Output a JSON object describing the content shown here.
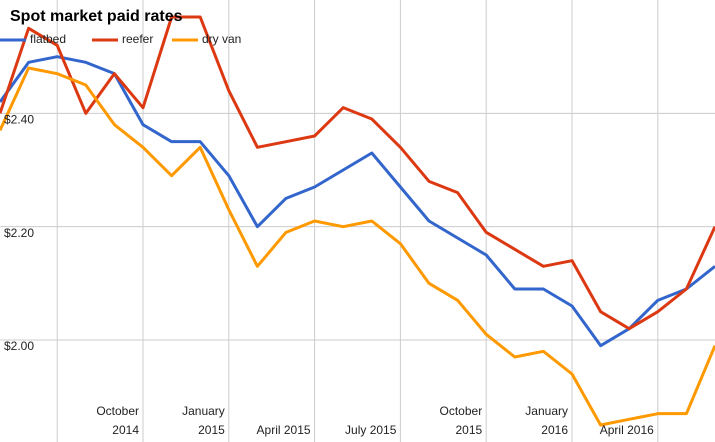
{
  "chart_data": {
    "type": "line",
    "title": "Spot market paid rates",
    "categories": [
      null,
      null,
      null,
      null,
      null,
      "October 2014",
      null,
      null,
      "January 2015",
      null,
      null,
      "April 2015",
      null,
      null,
      "July 2015",
      null,
      null,
      "October 2015",
      null,
      null,
      "January 2016",
      null,
      null,
      "April 2016",
      null,
      null
    ],
    "series": [
      {
        "name": "flatbed",
        "color": "#3366cc",
        "values": [
          2.42,
          2.49,
          2.5,
          2.49,
          2.47,
          2.38,
          2.35,
          2.35,
          2.29,
          2.2,
          2.25,
          2.27,
          2.3,
          2.33,
          2.27,
          2.21,
          2.18,
          2.15,
          2.09,
          2.09,
          2.06,
          1.99,
          2.02,
          2.07,
          2.09,
          2.13
        ]
      },
      {
        "name": "reefer",
        "color": "#dc3912",
        "values": [
          2.4,
          2.55,
          2.52,
          2.4,
          2.47,
          2.41,
          2.57,
          2.57,
          2.44,
          2.34,
          2.35,
          2.36,
          2.41,
          2.39,
          2.34,
          2.28,
          2.26,
          2.19,
          2.16,
          2.13,
          2.14,
          2.05,
          2.02,
          2.05,
          2.09,
          2.2
        ]
      },
      {
        "name": "dry van",
        "color": "#ff9900",
        "values": [
          2.37,
          2.48,
          2.47,
          2.45,
          2.38,
          2.34,
          2.29,
          2.34,
          2.23,
          2.13,
          2.19,
          2.21,
          2.2,
          2.21,
          2.17,
          2.1,
          2.07,
          2.01,
          1.97,
          1.98,
          1.94,
          1.85,
          1.86,
          1.87,
          1.87,
          1.99
        ]
      }
    ],
    "ylim": [
      1.82,
      2.6
    ],
    "yticks": [
      {
        "value": 2.0,
        "label": "$2.00"
      },
      {
        "value": 2.2,
        "label": "$2.20"
      },
      {
        "value": 2.4,
        "label": "$2.40"
      }
    ],
    "grid": true,
    "legend": "top-left"
  }
}
